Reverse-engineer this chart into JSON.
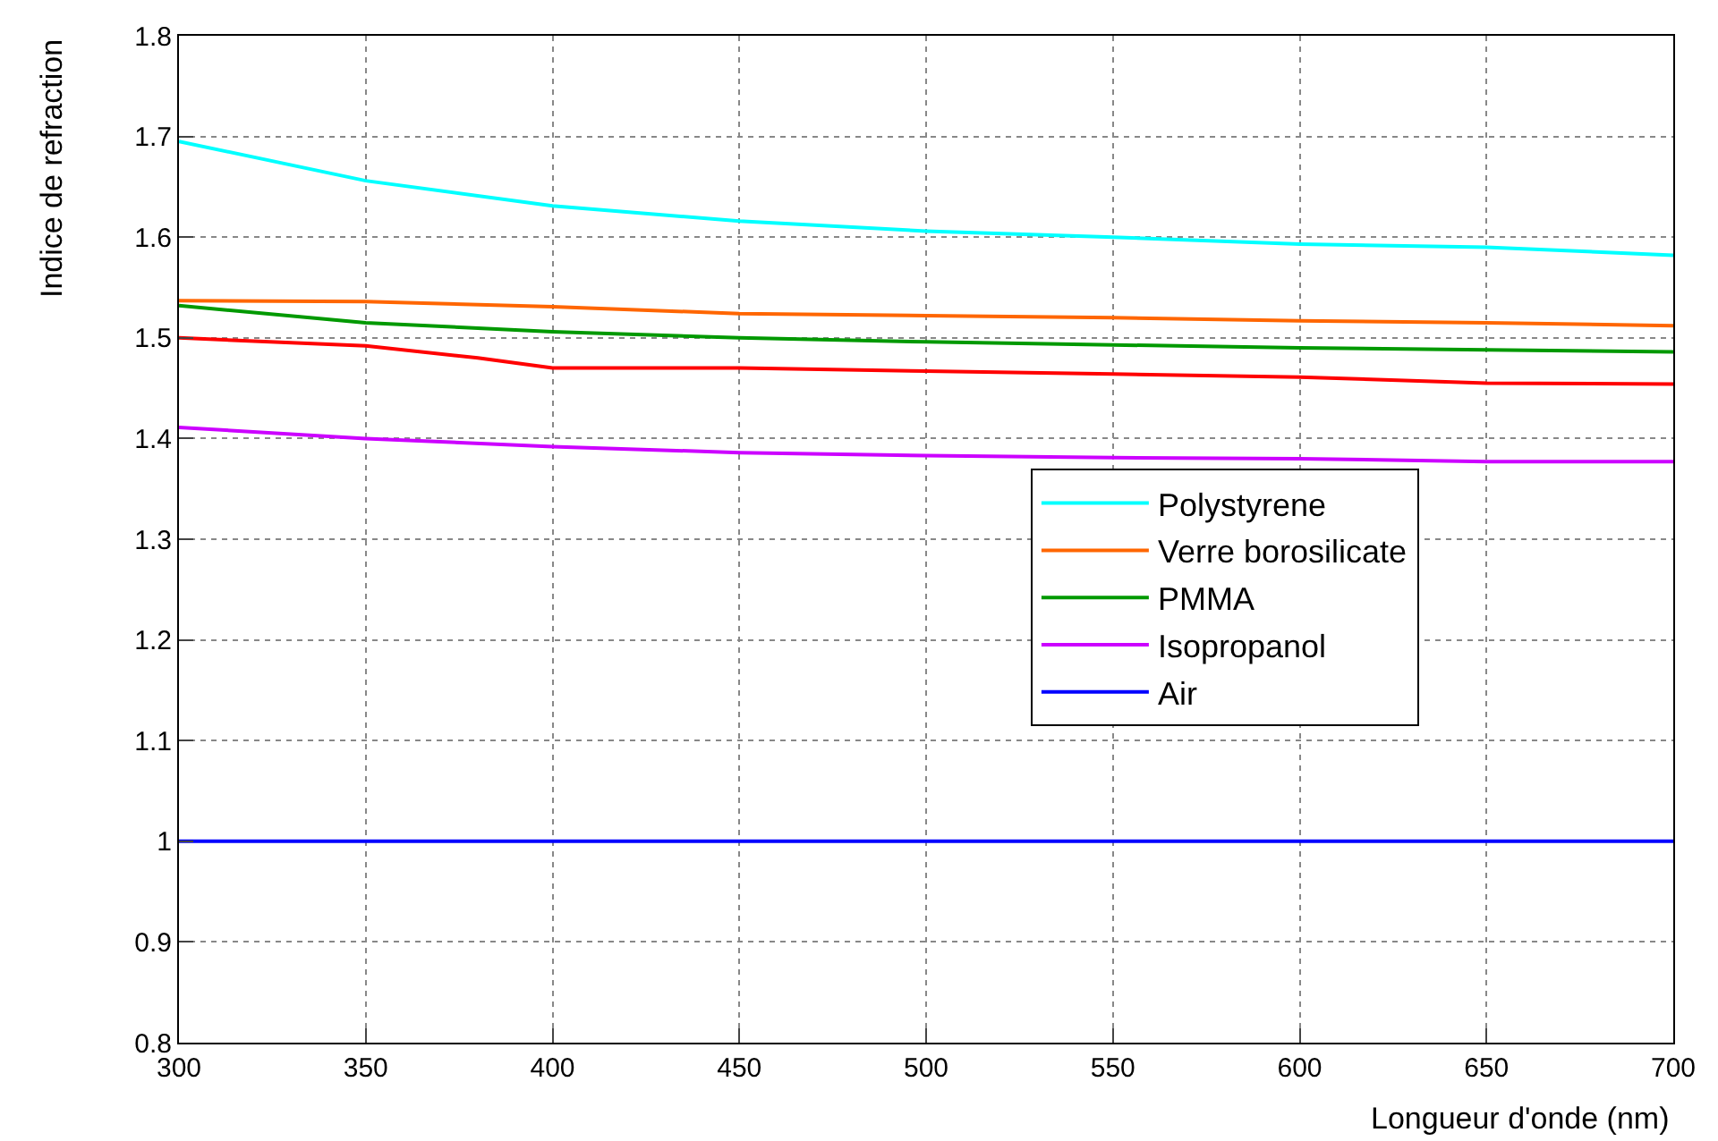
{
  "chart_data": {
    "type": "line",
    "xlabel": "Longueur d'onde (nm)",
    "ylabel": "Indice de refraction",
    "xlim": [
      300,
      700
    ],
    "ylim": [
      0.8,
      1.8
    ],
    "xticks": [
      300,
      350,
      400,
      450,
      500,
      550,
      600,
      650,
      700
    ],
    "yticks": [
      0.8,
      0.9,
      1,
      1.1,
      1.2,
      1.3,
      1.4,
      1.5,
      1.6,
      1.7,
      1.8
    ],
    "grid": true,
    "legend": "center right",
    "marker": "none",
    "line_style": "solid",
    "x": [
      300,
      350,
      400,
      450,
      500,
      550,
      600,
      650,
      700
    ],
    "series": [
      {
        "name": "Polystyrene",
        "color": "#00ffff",
        "values": [
          1.695,
          1.656,
          1.631,
          1.616,
          1.606,
          1.6,
          1.593,
          1.59,
          1.582
        ]
      },
      {
        "name": "Verre borosilicate",
        "color": "#ff6600",
        "values": [
          1.537,
          1.536,
          1.531,
          1.524,
          1.522,
          1.52,
          1.517,
          1.515,
          1.512
        ]
      },
      {
        "color": "#ff0000",
        "x": [
          300,
          350,
          380,
          400,
          450,
          500,
          550,
          600,
          650,
          700
        ],
        "values": [
          1.5,
          1.492,
          1.48,
          1.47,
          1.47,
          1.467,
          1.464,
          1.461,
          1.455,
          1.454
        ]
      },
      {
        "name": "PMMA",
        "color": "#009900",
        "values": [
          1.532,
          1.515,
          1.506,
          1.5,
          1.496,
          1.493,
          1.49,
          1.488,
          1.486
        ]
      },
      {
        "name": "Isopropanol",
        "color": "#cc00ff",
        "values": [
          1.411,
          1.4,
          1.392,
          1.386,
          1.383,
          1.381,
          1.38,
          1.377,
          1.377
        ]
      },
      {
        "name": "Air",
        "color": "#0000ff",
        "values": [
          1,
          1,
          1,
          1,
          1,
          1,
          1,
          1,
          1
        ]
      }
    ]
  }
}
